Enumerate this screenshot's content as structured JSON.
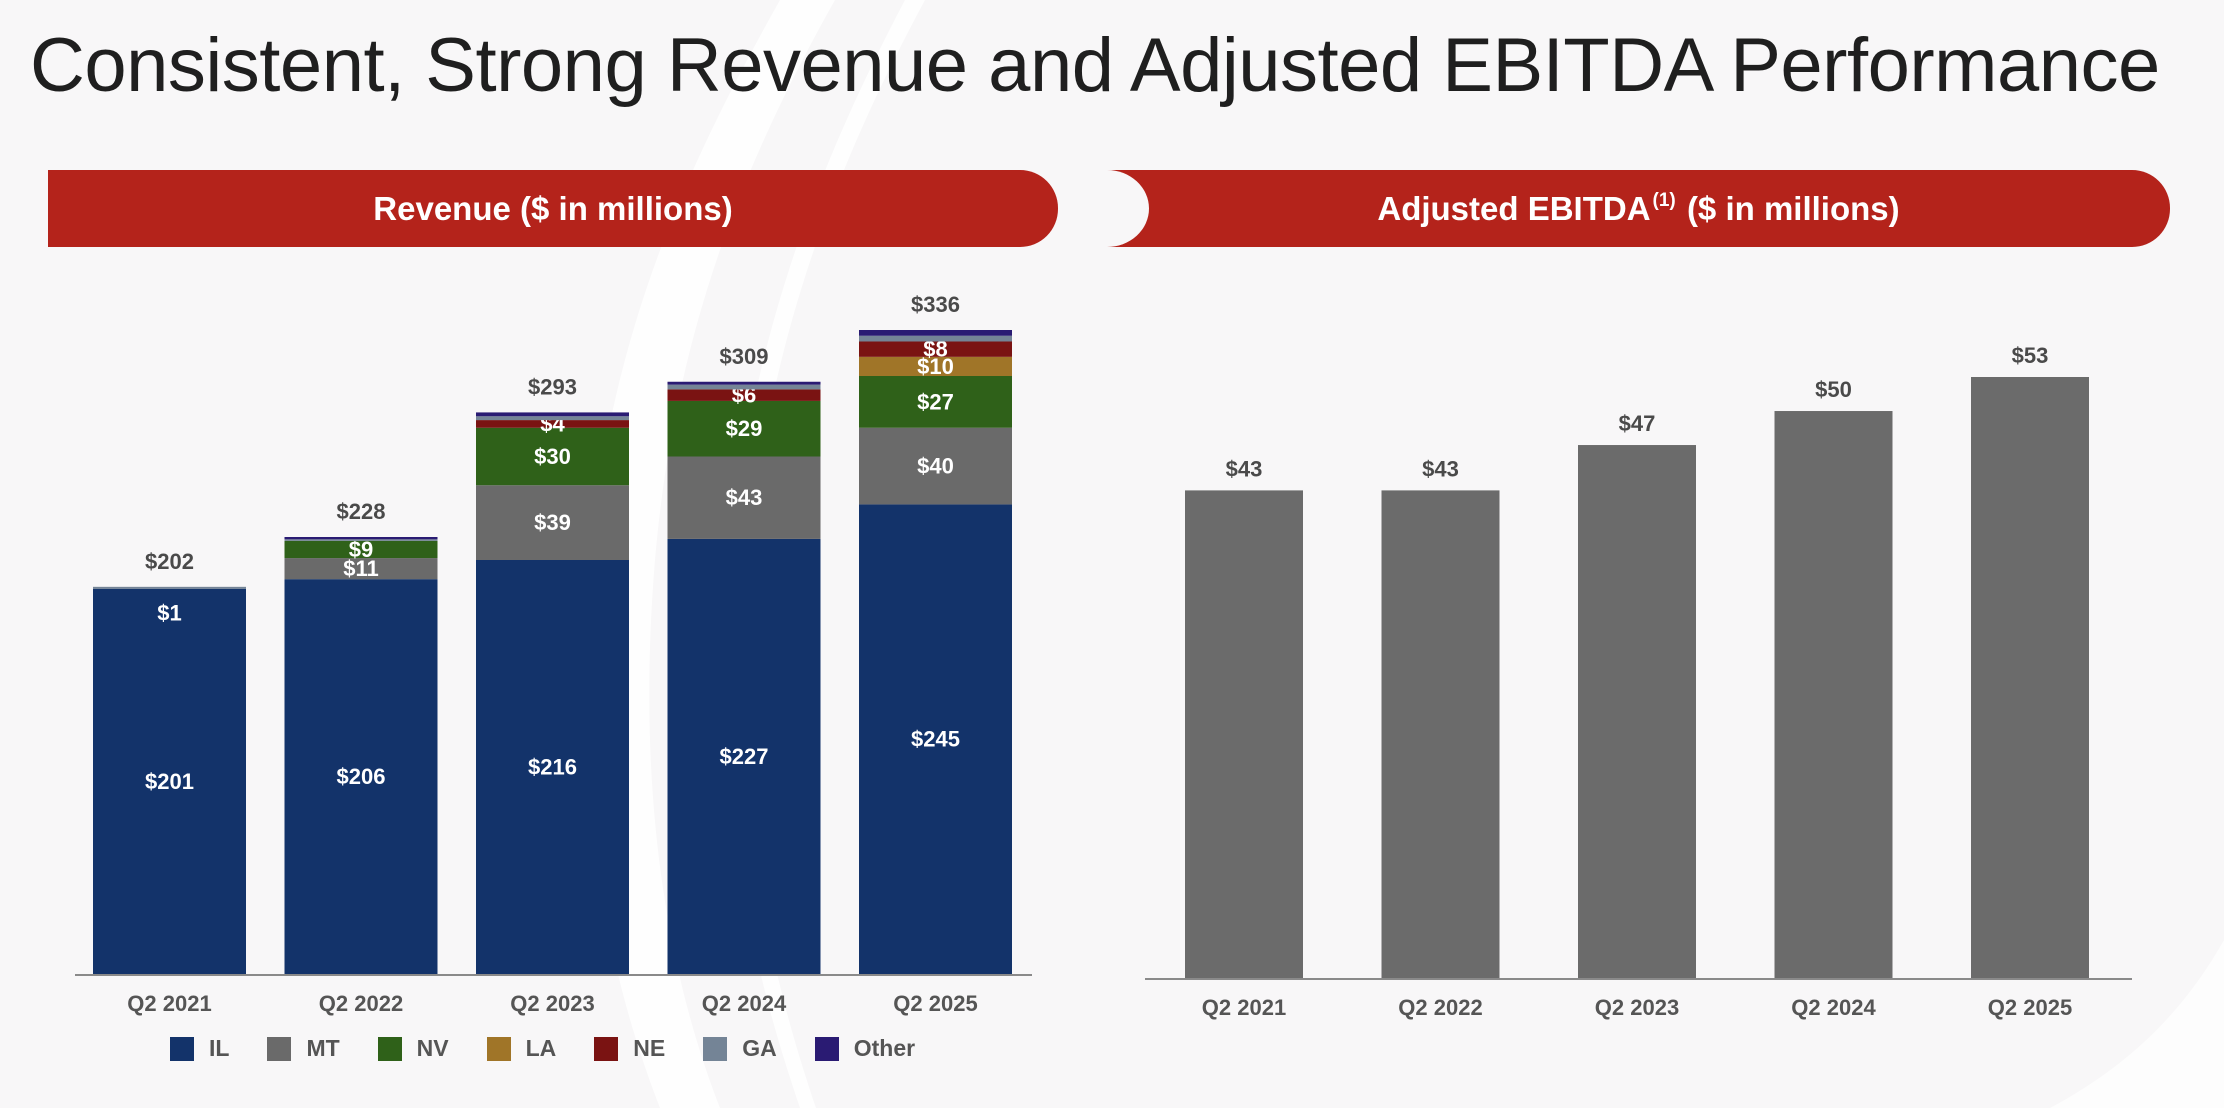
{
  "title": "Consistent, Strong Revenue and Adjusted EBITDA Performance",
  "revenue_header": "Revenue ($ in millions)",
  "ebitda_header": {
    "main": "Adjusted EBITDA",
    "footnote": "(1)",
    "units": "($ in millions)"
  },
  "colors": {
    "header": "#b4231b",
    "IL": "#13336a",
    "MT": "#6a6a6a",
    "NV": "#2f6119",
    "LA": "#a07528",
    "NE": "#7a1312",
    "GA": "#748496",
    "Other": "#2a1b73",
    "ebitda_bar": "#6b6b6b",
    "axis": "#8a8a8a",
    "total_label": "#4a4a4a"
  },
  "chart_data": [
    {
      "type": "bar",
      "stacked": true,
      "title": "Revenue ($ in millions)",
      "categories": [
        "Q2 2021",
        "Q2 2022",
        "Q2 2023",
        "Q2 2024",
        "Q2 2025"
      ],
      "ylim": [
        0,
        336
      ],
      "series": [
        {
          "name": "IL",
          "values": [
            201,
            206,
            216,
            227,
            245
          ],
          "labels": [
            "$201",
            "$206",
            "$216",
            "$227",
            "$245"
          ]
        },
        {
          "name": "MT",
          "values": [
            0,
            11,
            39,
            43,
            40
          ],
          "labels": [
            "",
            "$11",
            "$39",
            "$43",
            "$40"
          ]
        },
        {
          "name": "NV",
          "values": [
            0,
            9,
            30,
            29,
            27
          ],
          "labels": [
            "",
            "$9",
            "$30",
            "$29",
            "$27"
          ]
        },
        {
          "name": "LA",
          "values": [
            0,
            0,
            0,
            0,
            10
          ],
          "labels": [
            "",
            "",
            "",
            "",
            "$10"
          ]
        },
        {
          "name": "NE",
          "values": [
            0,
            0,
            4,
            6,
            8
          ],
          "labels": [
            "",
            "",
            "$4",
            "$6",
            "$8"
          ]
        },
        {
          "name": "GA",
          "values": [
            1,
            0.8,
            2,
            2.5,
            3
          ],
          "labels": [
            "$1",
            "",
            "",
            "",
            ""
          ]
        },
        {
          "name": "Other",
          "values": [
            0,
            1.2,
            2,
            1.5,
            3
          ],
          "labels": [
            "",
            "",
            "",
            "",
            ""
          ]
        }
      ],
      "totals": [
        202,
        228,
        293,
        309,
        336
      ],
      "total_labels": [
        "$202",
        "$228",
        "$293",
        "$309",
        "$336"
      ],
      "legend": [
        "IL",
        "MT",
        "NV",
        "LA",
        "NE",
        "GA",
        "Other"
      ]
    },
    {
      "type": "bar",
      "title": "Adjusted EBITDA(1) ($ in millions)",
      "categories": [
        "Q2 2021",
        "Q2 2022",
        "Q2 2023",
        "Q2 2024",
        "Q2 2025"
      ],
      "values": [
        43,
        43,
        47,
        50,
        53
      ],
      "labels": [
        "$43",
        "$43",
        "$47",
        "$50",
        "$53"
      ],
      "ylim": [
        0,
        53
      ]
    }
  ]
}
